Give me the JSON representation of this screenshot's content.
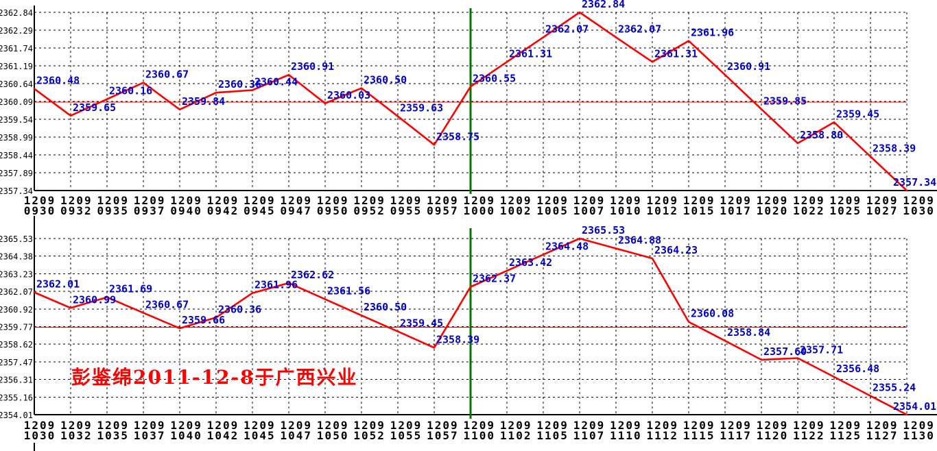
{
  "annotation": {
    "text": "彭鉴绵2011-12-8于广西兴业",
    "color": "#FF0000"
  },
  "colors": {
    "background": "#FFFFFF",
    "price_line": "#FF0000",
    "point_label": "#0000CC",
    "gridline": "#000000",
    "axis": "#000000",
    "reference_line": "#FF0000",
    "session_divider": "#007700"
  },
  "chart_data": [
    {
      "type": "line",
      "title": "",
      "panel": "morning-early-session",
      "date_label": "1209",
      "grid": true,
      "legend": "none",
      "x": [
        "0930",
        "0932",
        "0935",
        "0937",
        "0940",
        "0942",
        "0945",
        "0947",
        "0950",
        "0952",
        "0955",
        "0957",
        "1000",
        "1002",
        "1005",
        "1007",
        "1010",
        "1012",
        "1015",
        "1017",
        "1020",
        "1022",
        "1025",
        "1027",
        "1030"
      ],
      "values": [
        2360.48,
        2359.65,
        2360.16,
        2360.67,
        2359.84,
        2360.36,
        2360.44,
        2360.91,
        2360.03,
        2360.5,
        2359.63,
        2358.75,
        2360.55,
        2361.31,
        2362.07,
        2362.84,
        2362.07,
        2361.31,
        2361.96,
        2360.91,
        2359.85,
        2358.8,
        2359.45,
        2358.39,
        2357.34
      ],
      "y_ticks": [
        2362.84,
        2362.29,
        2361.74,
        2361.19,
        2360.64,
        2360.09,
        2359.54,
        2358.99,
        2358.44,
        2357.89,
        2357.34
      ],
      "ylim": [
        2357.34,
        2362.84
      ],
      "reference_value": 2360.09,
      "divider_at": "1000"
    },
    {
      "type": "line",
      "title": "",
      "panel": "morning-late-session",
      "date_label": "1209",
      "grid": true,
      "legend": "none",
      "x": [
        "1030",
        "1032",
        "1035",
        "1037",
        "1040",
        "1042",
        "1045",
        "1047",
        "1050",
        "1052",
        "1055",
        "1057",
        "1100",
        "1102",
        "1105",
        "1107",
        "1110",
        "1112",
        "1115",
        "1117",
        "1120",
        "1122",
        "1125",
        "1127",
        "1130"
      ],
      "values": [
        2362.01,
        2360.99,
        2361.69,
        2360.67,
        2359.66,
        2360.36,
        2361.96,
        2362.62,
        2361.56,
        2360.5,
        2359.45,
        2358.39,
        2362.37,
        2363.42,
        2364.48,
        2365.53,
        2364.88,
        2364.23,
        2360.08,
        2358.84,
        2357.6,
        2357.71,
        2356.48,
        2355.24,
        2354.01
      ],
      "y_ticks": [
        2365.53,
        2364.38,
        2363.23,
        2362.07,
        2360.92,
        2359.77,
        2358.62,
        2357.47,
        2356.31,
        2355.16,
        2354.01
      ],
      "ylim": [
        2354.01,
        2365.53
      ],
      "reference_value": 2359.77,
      "divider_at": "1100"
    }
  ]
}
